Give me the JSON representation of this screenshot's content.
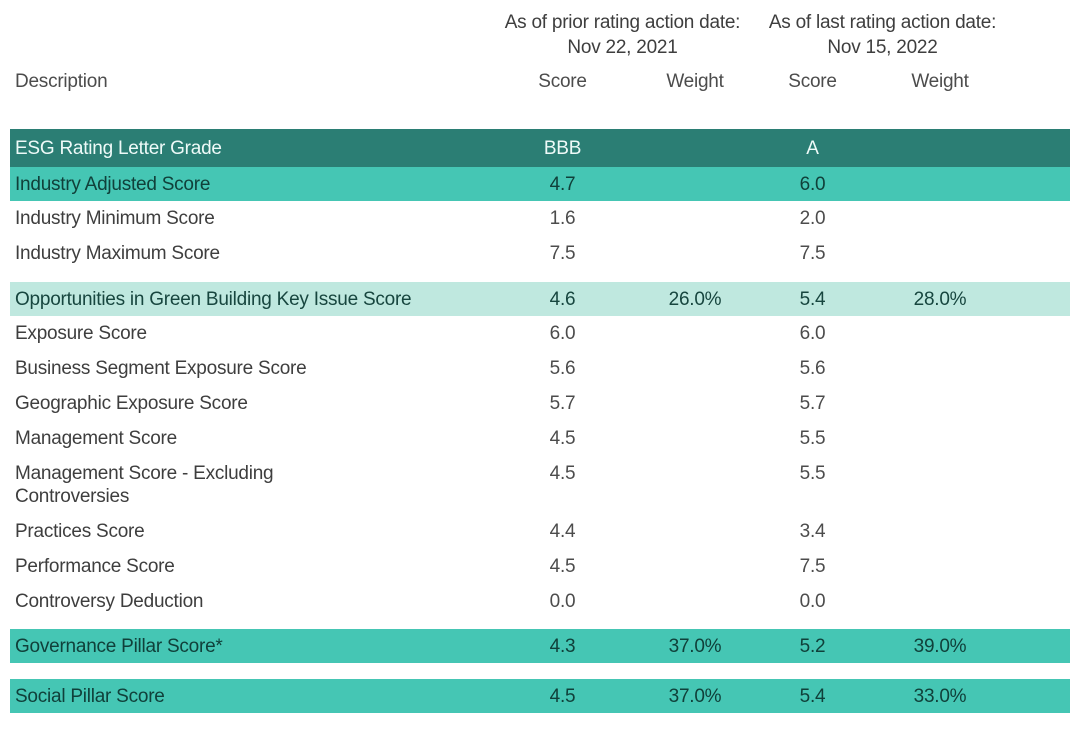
{
  "table": {
    "group_headers": [
      {
        "line1": "As of prior rating action date:",
        "line2": "Nov 22, 2021"
      },
      {
        "line1": "As of last rating action date:",
        "line2": "Nov 15, 2022"
      }
    ],
    "column_headers": [
      "Description",
      "Score",
      "Weight",
      "Score",
      "Weight"
    ],
    "rows": [
      {
        "variant": "dark",
        "label": "ESG Rating Letter Grade",
        "values": [
          "BBB",
          "",
          "A",
          ""
        ]
      },
      {
        "variant": "teal",
        "label": "Industry Adjusted Score",
        "values": [
          "4.7",
          "",
          "6.0",
          ""
        ]
      },
      {
        "variant": "plain",
        "label": "Industry Minimum Score",
        "values": [
          "1.6",
          "",
          "2.0",
          ""
        ]
      },
      {
        "variant": "plain",
        "label": "Industry Maximum Score",
        "values": [
          "7.5",
          "",
          "7.5",
          ""
        ]
      },
      {
        "variant": "spacer-md"
      },
      {
        "variant": "mint",
        "label": "Opportunities in Green Building Key Issue Score",
        "values": [
          "4.6",
          "26.0%",
          "5.4",
          "28.0%"
        ]
      },
      {
        "variant": "plain",
        "label": "Exposure Score",
        "values": [
          "6.0",
          "",
          "6.0",
          ""
        ]
      },
      {
        "variant": "plain",
        "label": "Business Segment Exposure Score",
        "values": [
          "5.6",
          "",
          "5.6",
          ""
        ]
      },
      {
        "variant": "plain",
        "label": "Geographic Exposure Score",
        "values": [
          "5.7",
          "",
          "5.7",
          ""
        ]
      },
      {
        "variant": "plain",
        "label": "Management Score",
        "values": [
          "4.5",
          "",
          "5.5",
          ""
        ]
      },
      {
        "variant": "plain",
        "label": "Management Score - Excluding\nControversies",
        "values": [
          "4.5",
          "",
          "5.5",
          ""
        ]
      },
      {
        "variant": "plain",
        "label": "Practices Score",
        "values": [
          "4.4",
          "",
          "3.4",
          ""
        ]
      },
      {
        "variant": "plain",
        "label": "Performance Score",
        "values": [
          "4.5",
          "",
          "7.5",
          ""
        ]
      },
      {
        "variant": "plain",
        "label": "Controversy Deduction",
        "values": [
          "0.0",
          "",
          "0.0",
          ""
        ]
      },
      {
        "variant": "spacer-sm"
      },
      {
        "variant": "teal",
        "label": "Governance Pillar Score*",
        "values": [
          "4.3",
          "37.0%",
          "5.2",
          "39.0%"
        ]
      },
      {
        "variant": "spacer-lg"
      },
      {
        "variant": "teal",
        "label": "Social Pillar Score",
        "values": [
          "4.5",
          "37.0%",
          "5.4",
          "33.0%"
        ]
      }
    ],
    "colors": {
      "header_row_bg": "#2b7e74",
      "header_row_text": "#eefaf8",
      "highlight_row_bg": "#45c6b4",
      "highlight_row_text": "#10403a",
      "subtle_row_bg": "#bfe8df",
      "subtle_row_text": "#17463f",
      "body_text": "#3e3e3e"
    }
  }
}
